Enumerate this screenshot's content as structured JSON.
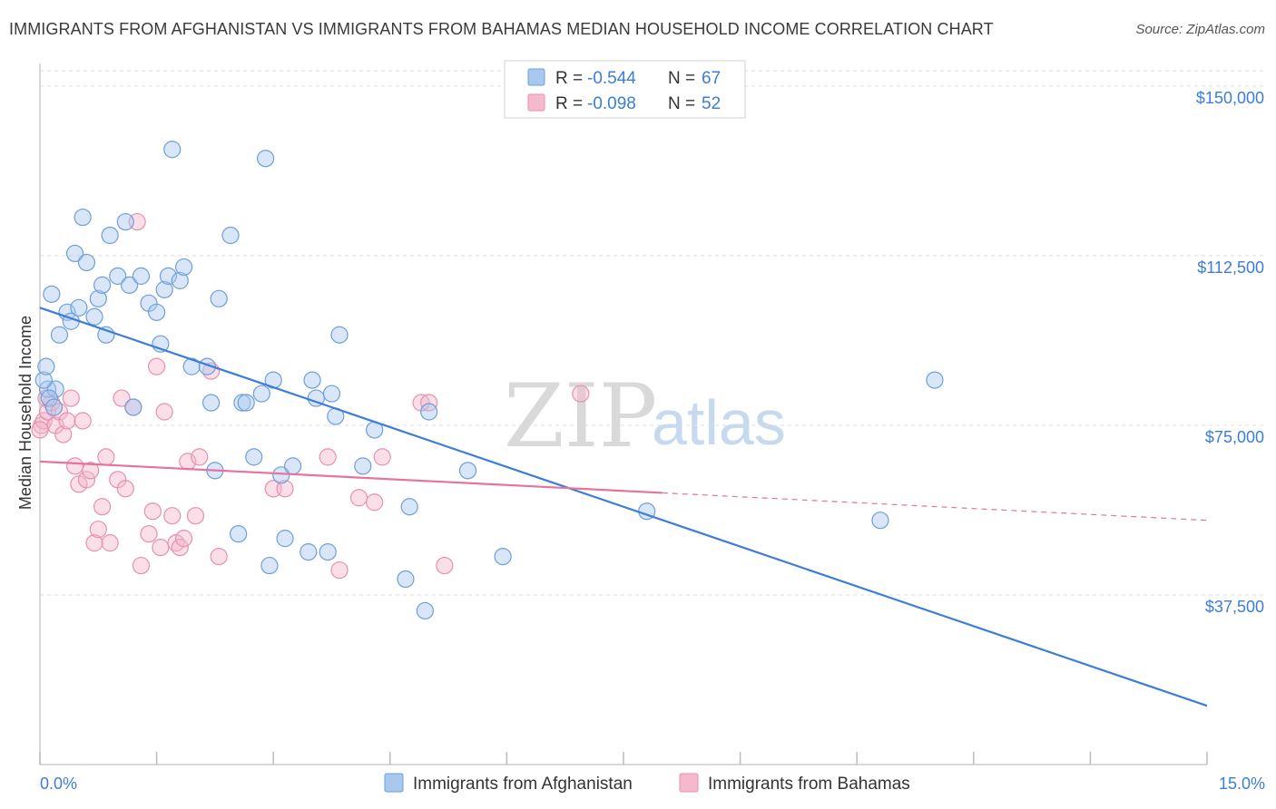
{
  "title": "IMMIGRANTS FROM AFGHANISTAN VS IMMIGRANTS FROM BAHAMAS MEDIAN HOUSEHOLD INCOME CORRELATION CHART",
  "source": "Source: ZipAtlas.com",
  "watermark": {
    "zip": "ZIP",
    "atlas": "atlas"
  },
  "colors": {
    "blue": "#3b7dd8",
    "blue_fill": "#a9c8ee",
    "pink": "#e8729c",
    "pink_fill": "#f5b8cd",
    "grid": "#dddddd"
  },
  "chart_data": {
    "type": "scatter",
    "ylabel": "Median Household Income",
    "xlabel": "",
    "xlim": [
      0,
      15
    ],
    "ylim": [
      0,
      155000
    ],
    "x_tick_labels": [
      "0.0%",
      "15.0%"
    ],
    "y_ticks": [
      37500,
      75000,
      112500,
      150000
    ],
    "y_tick_labels": [
      "$37,500",
      "$75,000",
      "$112,500",
      "$150,000"
    ],
    "grid": "horizontal dashed",
    "legend": {
      "position": "top-center",
      "rows": [
        {
          "r_label": "R = ",
          "r": "-0.544",
          "n_label": "N = ",
          "n": "67"
        },
        {
          "r_label": "R = ",
          "r": "-0.098",
          "n_label": "N = ",
          "n": "52"
        }
      ]
    },
    "series": [
      {
        "name": "Immigrants from Afghanistan",
        "color": "#3b7dd8",
        "trend": {
          "x0": 0.0,
          "y0": 101000,
          "x1": 15.0,
          "y1": 13000,
          "dashed_from": null
        },
        "points": [
          [
            0.1,
            83000
          ],
          [
            0.15,
            104000
          ],
          [
            0.2,
            83000
          ],
          [
            0.35,
            100000
          ],
          [
            0.4,
            98000
          ],
          [
            0.45,
            113000
          ],
          [
            0.5,
            101000
          ],
          [
            0.55,
            121000
          ],
          [
            0.6,
            111000
          ],
          [
            0.7,
            99000
          ],
          [
            0.75,
            103000
          ],
          [
            0.8,
            106000
          ],
          [
            0.85,
            95000
          ],
          [
            0.9,
            117000
          ],
          [
            1.0,
            108000
          ],
          [
            1.1,
            120000
          ],
          [
            1.15,
            106000
          ],
          [
            1.2,
            79000
          ],
          [
            1.3,
            108000
          ],
          [
            1.4,
            102000
          ],
          [
            1.5,
            100000
          ],
          [
            1.55,
            93000
          ],
          [
            1.6,
            105000
          ],
          [
            1.65,
            108000
          ],
          [
            1.7,
            136000
          ],
          [
            1.8,
            107000
          ],
          [
            1.85,
            110000
          ],
          [
            1.95,
            88000
          ],
          [
            2.15,
            88000
          ],
          [
            2.2,
            80000
          ],
          [
            2.25,
            65000
          ],
          [
            2.3,
            103000
          ],
          [
            2.45,
            117000
          ],
          [
            2.55,
            51000
          ],
          [
            2.6,
            80000
          ],
          [
            2.65,
            80000
          ],
          [
            2.75,
            68000
          ],
          [
            2.85,
            82000
          ],
          [
            2.9,
            134000
          ],
          [
            2.95,
            44000
          ],
          [
            3.0,
            85000
          ],
          [
            3.1,
            64000
          ],
          [
            3.15,
            50000
          ],
          [
            3.25,
            66000
          ],
          [
            3.45,
            47000
          ],
          [
            3.5,
            85000
          ],
          [
            3.55,
            81000
          ],
          [
            3.7,
            47000
          ],
          [
            3.75,
            82000
          ],
          [
            3.8,
            77000
          ],
          [
            3.85,
            95000
          ],
          [
            4.15,
            66000
          ],
          [
            4.3,
            74000
          ],
          [
            4.7,
            41000
          ],
          [
            4.75,
            57000
          ],
          [
            4.95,
            34000
          ],
          [
            5.0,
            78000
          ],
          [
            5.5,
            65000
          ],
          [
            5.95,
            46000
          ],
          [
            7.8,
            56000
          ],
          [
            10.8,
            54000
          ],
          [
            11.5,
            85000
          ],
          [
            0.05,
            85000
          ],
          [
            0.08,
            88000
          ],
          [
            0.12,
            81000
          ],
          [
            0.18,
            79000
          ],
          [
            0.25,
            95000
          ]
        ]
      },
      {
        "name": "Immigrants from Bahamas",
        "color": "#e8729c",
        "trend": {
          "x0": 0.0,
          "y0": 67000,
          "x1": 15.0,
          "y1": 54000,
          "dashed_from": 8.0
        },
        "points": [
          [
            0.02,
            75000
          ],
          [
            0.05,
            76000
          ],
          [
            0.1,
            78000
          ],
          [
            0.15,
            80000
          ],
          [
            0.2,
            75000
          ],
          [
            0.25,
            78000
          ],
          [
            0.3,
            73000
          ],
          [
            0.35,
            76000
          ],
          [
            0.4,
            81000
          ],
          [
            0.45,
            66000
          ],
          [
            0.5,
            62000
          ],
          [
            0.55,
            76000
          ],
          [
            0.6,
            63000
          ],
          [
            0.65,
            65000
          ],
          [
            0.7,
            49000
          ],
          [
            0.75,
            52000
          ],
          [
            0.8,
            57000
          ],
          [
            0.85,
            68000
          ],
          [
            0.9,
            49000
          ],
          [
            1.0,
            63000
          ],
          [
            1.05,
            81000
          ],
          [
            1.1,
            61000
          ],
          [
            1.2,
            79000
          ],
          [
            1.25,
            120000
          ],
          [
            1.3,
            44000
          ],
          [
            1.4,
            51000
          ],
          [
            1.45,
            56000
          ],
          [
            1.5,
            88000
          ],
          [
            1.55,
            48000
          ],
          [
            1.6,
            78000
          ],
          [
            1.7,
            55000
          ],
          [
            1.75,
            49000
          ],
          [
            1.8,
            48000
          ],
          [
            1.85,
            50000
          ],
          [
            1.9,
            67000
          ],
          [
            2.0,
            55000
          ],
          [
            2.05,
            68000
          ],
          [
            2.2,
            87000
          ],
          [
            2.3,
            46000
          ],
          [
            3.0,
            61000
          ],
          [
            3.15,
            61000
          ],
          [
            3.7,
            68000
          ],
          [
            3.85,
            43000
          ],
          [
            4.1,
            59000
          ],
          [
            4.3,
            58000
          ],
          [
            4.4,
            68000
          ],
          [
            4.9,
            80000
          ],
          [
            5.0,
            80000
          ],
          [
            5.2,
            44000
          ],
          [
            6.95,
            82000
          ],
          [
            0.0,
            74000
          ],
          [
            0.08,
            81000
          ]
        ]
      }
    ]
  },
  "bottom_legend": [
    {
      "label": "Immigrants from Afghanistan"
    },
    {
      "label": "Immigrants from Bahamas"
    }
  ]
}
